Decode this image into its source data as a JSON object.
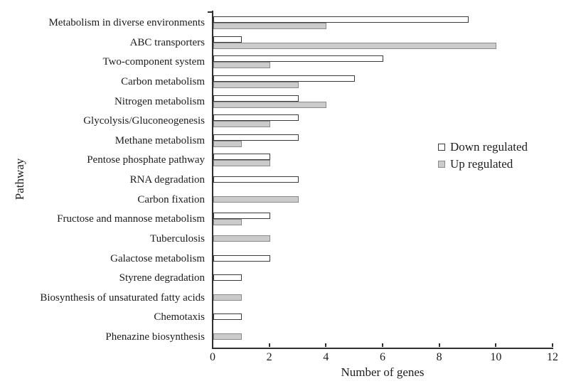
{
  "chart_data": {
    "type": "bar",
    "orientation": "horizontal",
    "title": "",
    "xlabel": "Number of genes",
    "ylabel": "Pathway",
    "xlim": [
      0,
      12
    ],
    "xticks": [
      0,
      2,
      4,
      6,
      8,
      10,
      12
    ],
    "grid": false,
    "legend_position": "middle-right",
    "categories": [
      "Metabolism in diverse environments",
      "ABC transporters",
      "Two-component system",
      "Carbon metabolism",
      "Nitrogen metabolism",
      "Glycolysis/Gluconeogenesis",
      "Methane metabolism",
      "Pentose phosphate pathway",
      "RNA degradation",
      "Carbon fixation",
      "Fructose and mannose metabolism",
      "Tuberculosis",
      "Galactose metabolism",
      "Styrene degradation",
      "Biosynthesis of unsaturated fatty acids",
      "Chemotaxis",
      "Phenazine biosynthesis"
    ],
    "series": [
      {
        "name": "Down regulated",
        "fill_color": "#ffffff",
        "border_color": "#3b3b3b",
        "values": [
          9,
          1,
          6,
          5,
          3,
          3,
          3,
          2,
          3,
          0,
          2,
          0,
          2,
          1,
          0,
          1,
          0
        ]
      },
      {
        "name": "Up regulated",
        "fill_color": "#cbcbcb",
        "border_color": "#8a8a8a",
        "values": [
          4,
          10,
          2,
          3,
          4,
          2,
          1,
          2,
          0,
          3,
          1,
          2,
          0,
          0,
          1,
          0,
          1
        ]
      }
    ]
  }
}
